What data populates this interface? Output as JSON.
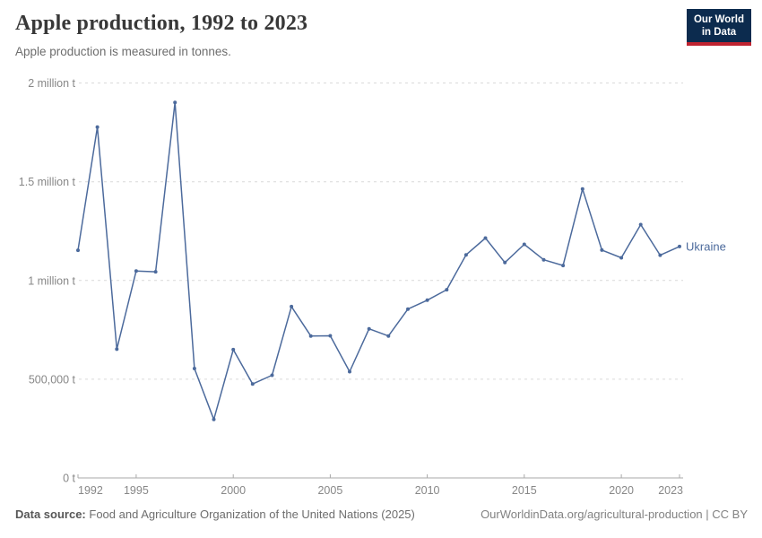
{
  "header": {
    "title": "Apple production, 1992 to 2023",
    "subtitle": "Apple production is measured in tonnes.",
    "logo": {
      "line1": "Our World",
      "line2": "in Data",
      "bg": "#0c2b4e",
      "accent": "#bf2330"
    }
  },
  "chart_data": {
    "type": "line",
    "title": "Apple production, 1992 to 2023",
    "unit": "tonnes",
    "xlabel": "",
    "ylabel": "",
    "xlim": [
      1992,
      2023
    ],
    "ylim": [
      0,
      2000000
    ],
    "grid": "dashed-horizontal",
    "legend_position": "end-of-line-label",
    "xticks": [
      1992,
      1995,
      2000,
      2005,
      2010,
      2015,
      2020,
      2023
    ],
    "yticks": [
      {
        "value": 0,
        "label": "0 t"
      },
      {
        "value": 500000,
        "label": "500,000 t"
      },
      {
        "value": 1000000,
        "label": "1 million t"
      },
      {
        "value": 1500000,
        "label": "1.5 million t"
      },
      {
        "value": 2000000,
        "label": "2 million t"
      }
    ],
    "series": [
      {
        "name": "Ukraine",
        "color": "#4C6A9C",
        "x": [
          1992,
          1993,
          1994,
          1995,
          1996,
          1997,
          1998,
          1999,
          2000,
          2001,
          2002,
          2003,
          2004,
          2005,
          2006,
          2007,
          2008,
          2009,
          2010,
          2011,
          2012,
          2013,
          2014,
          2015,
          2016,
          2017,
          2018,
          2019,
          2020,
          2021,
          2022,
          2023
        ],
        "values": [
          1153000,
          1777000,
          652000,
          1048000,
          1044000,
          1902000,
          554000,
          296000,
          650000,
          476000,
          520000,
          868000,
          719000,
          720000,
          538000,
          755000,
          719000,
          855000,
          900000,
          953000,
          1130000,
          1215000,
          1091000,
          1183000,
          1105000,
          1076000,
          1463000,
          1154000,
          1115000,
          1283000,
          1128000,
          1172000
        ]
      }
    ]
  },
  "footer": {
    "source_label": "Data source:",
    "source": "Food and Agriculture Organization of the United Nations (2025)",
    "link": "OurWorldinData.org/agricultural-production | CC BY"
  }
}
